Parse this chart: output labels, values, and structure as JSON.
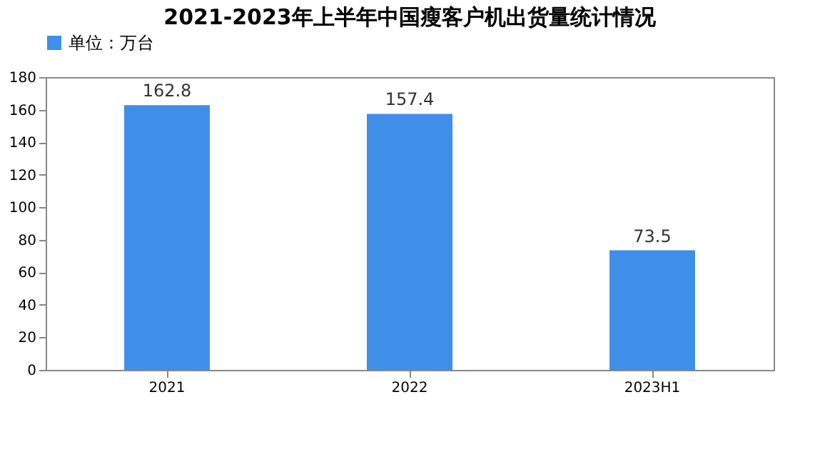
{
  "chart_data": {
    "type": "bar",
    "title": "2021-2023年上半年中国瘦客户机出货量统计情况",
    "categories": [
      "2021",
      "2022",
      "2023H1"
    ],
    "series": [
      {
        "name": "单位：万台",
        "color": "#3f8fe8",
        "values": [
          162.8,
          157.4,
          73.5
        ]
      }
    ],
    "ylim": [
      0,
      180
    ],
    "yticks": [
      0,
      20,
      40,
      60,
      80,
      100,
      120,
      140,
      160,
      180
    ],
    "grid": false,
    "legend": "top",
    "data_labels": true
  }
}
